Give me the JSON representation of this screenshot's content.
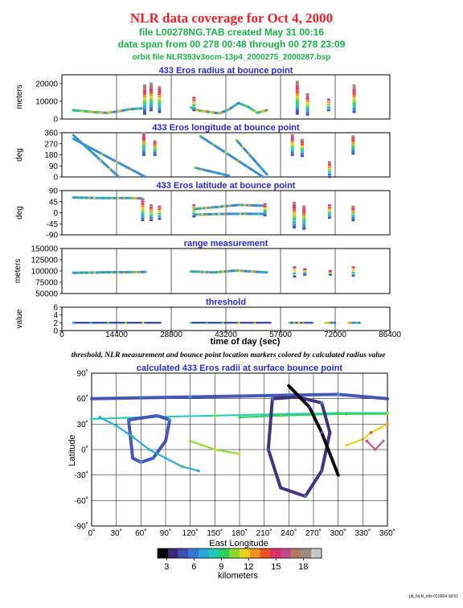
{
  "header": {
    "title": "NLR data coverage for Oct 4, 2000",
    "line1": "file L00278NG.TAB created May 31 00:16",
    "line2": "data span from 00 278 00:48 through 00 278 23:09",
    "line3": "orbit file NLR393v3ocm-13p4_2000275_2000287.bsp",
    "colors": {
      "title": "#e8232b",
      "info": "#1db04b",
      "panel_title": "#2a2ad0"
    }
  },
  "panels": [
    {
      "title": "433 Eros radius at bounce point",
      "ylabel": "meters",
      "yticks": [
        "0",
        "10000",
        "20000"
      ],
      "ylim": [
        0,
        25000
      ]
    },
    {
      "title": "433 Eros longitude at bounce point",
      "ylabel": "deg",
      "yticks": [
        "0",
        "90",
        "180",
        "270",
        "360"
      ],
      "ylim": [
        0,
        360
      ]
    },
    {
      "title": "433 Eros latitude at bounce point",
      "ylabel": "deg",
      "yticks": [
        "-90",
        "-45",
        "0",
        "45",
        "90"
      ],
      "ylim": [
        -90,
        90
      ]
    },
    {
      "title": "range measurement",
      "ylabel": "meters",
      "yticks": [
        "50000",
        "75000",
        "100000",
        "125000",
        "150000"
      ],
      "ylim": [
        50000,
        150000
      ]
    },
    {
      "title": "threshold",
      "ylabel": "value",
      "yticks": [
        "0",
        "2",
        "4",
        "6"
      ],
      "ylim": [
        0,
        6
      ]
    }
  ],
  "timeaxis": {
    "xlabel": "time of day (sec)",
    "ticks": [
      "0",
      "14400",
      "28800",
      "43200",
      "57600",
      "72000",
      "86400"
    ],
    "xlim": [
      0,
      86400
    ]
  },
  "caption": "threshold, NLR measurement and bounce point location markers colored by calculated radius value",
  "map": {
    "title": "calculated 433 Eros radii at surface bounce point",
    "xlabel": "East Longitude",
    "ylabel": "Latitude",
    "xticks": [
      "0˚",
      "30˚",
      "60˚",
      "90˚",
      "120˚",
      "150˚",
      "180˚",
      "210˚",
      "240˚",
      "270˚",
      "300˚",
      "330˚",
      "360˚"
    ],
    "yticks": [
      "90˚",
      "60˚",
      "30˚",
      "0˚",
      "-30˚",
      "-60˚",
      "-90˚"
    ],
    "xlim": [
      0,
      360
    ],
    "ylim": [
      -90,
      90
    ]
  },
  "colorbar": {
    "label": "kilometers",
    "ticks": [
      "3",
      "6",
      "9",
      "12",
      "15",
      "18"
    ],
    "range": [
      2,
      20
    ],
    "colors": [
      "#000000",
      "#3b2a78",
      "#3f4fb0",
      "#3a78d0",
      "#2aa7d8",
      "#22c9b0",
      "#2ad060",
      "#8ad828",
      "#e8d020",
      "#f09020",
      "#e85028",
      "#e0306a",
      "#c84890",
      "#b07a60",
      "#9a8d80",
      "#c8c8c8"
    ]
  },
  "footer": "plt_NLR_info 010904 18:51",
  "chart_data": [
    {
      "type": "scatter",
      "title": "433 Eros radius at bounce point",
      "ylabel": "meters",
      "xlabel": "time of day (sec)",
      "xlim": [
        0,
        86400
      ],
      "ylim": [
        0,
        25000
      ],
      "segments": [
        {
          "x": [
            3000,
            6000,
            9000,
            12000,
            15000,
            18000,
            21000
          ],
          "y": [
            5000,
            4400,
            3800,
            3500,
            4400,
            5600,
            6000
          ]
        },
        {
          "x": [
            34000,
            36500,
            39000,
            41500,
            44000,
            46500,
            49000,
            51500,
            54000
          ],
          "y": [
            6500,
            4600,
            4000,
            3200,
            5400,
            9000,
            7000,
            3500,
            5000
          ]
        }
      ],
      "bursts": [
        {
          "x": 22000,
          "ymin": 3000,
          "ymax": 19000
        },
        {
          "x": 23500,
          "ymin": 5000,
          "ymax": 20000
        },
        {
          "x": 25500,
          "ymin": 4000,
          "ymax": 18000
        },
        {
          "x": 35000,
          "ymin": 5000,
          "ymax": 12000
        },
        {
          "x": 62000,
          "ymin": 3000,
          "ymax": 21000
        },
        {
          "x": 64500,
          "ymin": 2500,
          "ymax": 14000
        },
        {
          "x": 70500,
          "ymin": 5000,
          "ymax": 11000
        },
        {
          "x": 77000,
          "ymin": 4000,
          "ymax": 19000
        }
      ]
    },
    {
      "type": "line",
      "title": "433 Eros longitude at bounce point",
      "ylabel": "deg",
      "xlabel": "time of day (sec)",
      "xlim": [
        0,
        86400
      ],
      "ylim": [
        0,
        360
      ],
      "segments": [
        {
          "x": [
            3000,
            15000
          ],
          "y": [
            340,
            0
          ]
        },
        {
          "x": [
            3000,
            22000
          ],
          "y": [
            310,
            0
          ]
        },
        {
          "x": [
            36500,
            53000
          ],
          "y": [
            330,
            0
          ]
        },
        {
          "x": [
            46000,
            54000
          ],
          "y": [
            300,
            20
          ]
        },
        {
          "x": [
            35000,
            44000
          ],
          "y": [
            75,
            10
          ]
        }
      ],
      "bursts": [
        {
          "x": 21800,
          "ymin": 180,
          "ymax": 355
        },
        {
          "x": 24500,
          "ymin": 180,
          "ymax": 290
        },
        {
          "x": 60500,
          "ymin": 180,
          "ymax": 340
        },
        {
          "x": 63500,
          "ymin": 170,
          "ymax": 300
        },
        {
          "x": 70500,
          "ymin": 0,
          "ymax": 120
        },
        {
          "x": 76500,
          "ymin": 190,
          "ymax": 330
        }
      ]
    },
    {
      "type": "line",
      "title": "433 Eros latitude at bounce point",
      "ylabel": "deg",
      "xlabel": "time of day (sec)",
      "xlim": [
        0,
        86400
      ],
      "ylim": [
        -90,
        90
      ],
      "segments": [
        {
          "x": [
            3000,
            10000,
            18000,
            21000
          ],
          "y": [
            62,
            60,
            60,
            58
          ]
        },
        {
          "x": [
            35000,
            40000,
            47000,
            53000
          ],
          "y": [
            15,
            22,
            32,
            28
          ]
        },
        {
          "x": [
            35000,
            40000,
            47000,
            53000
          ],
          "y": [
            -8,
            -6,
            -4,
            -5
          ]
        }
      ],
      "bursts": [
        {
          "x": 21500,
          "ymin": -30,
          "ymax": 55
        },
        {
          "x": 23500,
          "ymin": -30,
          "ymax": 30
        },
        {
          "x": 25500,
          "ymin": -25,
          "ymax": 25
        },
        {
          "x": 35000,
          "ymin": -15,
          "ymax": 30
        },
        {
          "x": 53500,
          "ymin": -10,
          "ymax": 35
        },
        {
          "x": 61000,
          "ymin": -60,
          "ymax": 40
        },
        {
          "x": 64000,
          "ymin": -65,
          "ymax": 25
        },
        {
          "x": 70500,
          "ymin": -20,
          "ymax": 30
        },
        {
          "x": 76500,
          "ymin": -30,
          "ymax": 25
        }
      ]
    },
    {
      "type": "line",
      "title": "range measurement",
      "ylabel": "meters",
      "xlabel": "time of day (sec)",
      "xlim": [
        0,
        86400
      ],
      "ylim": [
        50000,
        150000
      ],
      "segments": [
        {
          "x": [
            3000,
            10000,
            18000,
            22000
          ],
          "y": [
            96000,
            97000,
            97500,
            98000
          ]
        },
        {
          "x": [
            34000,
            40000,
            46000,
            50000,
            54000
          ],
          "y": [
            99000,
            97000,
            101000,
            99000,
            97000
          ]
        }
      ],
      "bursts": [
        {
          "x": 61500,
          "ymin": 88000,
          "ymax": 108000
        },
        {
          "x": 64000,
          "ymin": 92000,
          "ymax": 104000
        },
        {
          "x": 70500,
          "ymin": 92000,
          "ymax": 100000
        },
        {
          "x": 77000,
          "ymin": 90000,
          "ymax": 108000
        }
      ]
    },
    {
      "type": "scatter",
      "title": "threshold",
      "ylabel": "value",
      "xlabel": "time of day (sec)",
      "xlim": [
        0,
        86400
      ],
      "ylim": [
        0,
        6
      ],
      "segments": [
        {
          "x": [
            3000,
            26000
          ],
          "y": [
            2,
            2
          ]
        },
        {
          "x": [
            34000,
            55000
          ],
          "y": [
            2,
            2
          ]
        },
        {
          "x": [
            60000,
            66000
          ],
          "y": [
            2,
            2
          ]
        },
        {
          "x": [
            69500,
            72000
          ],
          "y": [
            2,
            2
          ]
        },
        {
          "x": [
            75500,
            78500
          ],
          "y": [
            2,
            2
          ]
        }
      ]
    },
    {
      "type": "scatter",
      "title": "calculated 433 Eros radii at surface bounce point",
      "xlabel": "East Longitude",
      "ylabel": "Latitude",
      "xlim": [
        0,
        360
      ],
      "ylim": [
        -90,
        90
      ],
      "tracks": [
        {
          "lon": [
            0,
            60,
            120,
            180,
            240,
            300,
            360
          ],
          "lat": [
            60,
            61,
            62,
            63,
            64,
            65,
            60
          ],
          "km": 5
        },
        {
          "lon": [
            0,
            60,
            150,
            240,
            300,
            360
          ],
          "lat": [
            36,
            38,
            40,
            42,
            43,
            43
          ],
          "km": 8
        },
        {
          "lon": [
            180,
            230,
            270,
            310,
            360
          ],
          "lat": [
            38,
            40,
            41,
            42,
            42
          ],
          "km": 9
        },
        {
          "lon": [
            45,
            80,
            95,
            90,
            75,
            60,
            50,
            45
          ],
          "lat": [
            35,
            40,
            35,
            10,
            -10,
            -15,
            -10,
            35
          ],
          "km": 5
        },
        {
          "lon": [
            10,
            30,
            50,
            70,
            90,
            110,
            130
          ],
          "lat": [
            38,
            28,
            15,
            0,
            -10,
            -20,
            -25
          ],
          "km": 7
        },
        {
          "lon": [
            120,
            150,
            180
          ],
          "lat": [
            10,
            0,
            -5
          ],
          "km": 10
        },
        {
          "lon": [
            220,
            250,
            280,
            290,
            280,
            260,
            230,
            215,
            220
          ],
          "lat": [
            60,
            62,
            55,
            20,
            -25,
            -55,
            -45,
            0,
            60
          ],
          "km": 4
        },
        {
          "lon": [
            240,
            265,
            280,
            300
          ],
          "lat": [
            75,
            50,
            20,
            -30
          ],
          "km": 3
        },
        {
          "lon": [
            310,
            330,
            340,
            350,
            360
          ],
          "lat": [
            5,
            12,
            20,
            25,
            30
          ],
          "km": 12
        },
        {
          "lon": [
            335,
            345,
            355
          ],
          "lat": [
            10,
            0,
            10
          ],
          "km": 16
        }
      ]
    }
  ]
}
